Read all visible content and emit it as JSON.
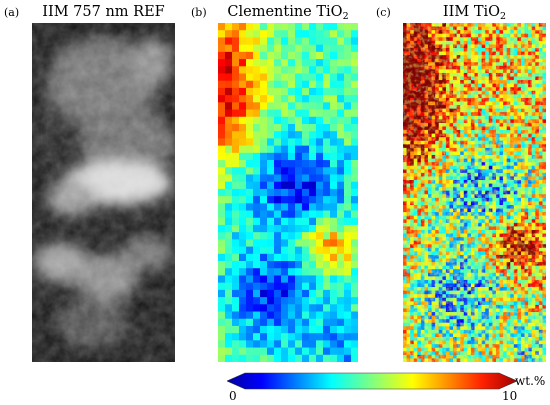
{
  "panels": [
    {
      "label": "(a)",
      "title_main": "IIM 757 nm REF",
      "title_sub": "",
      "kind": "reflectance"
    },
    {
      "label": "(b)",
      "title_main": "Clementine TiO",
      "title_sub": "2",
      "kind": "coarse"
    },
    {
      "label": "(c)",
      "title_main": "IIM TiO",
      "title_sub": "2",
      "kind": "fine"
    }
  ],
  "colorbar": {
    "min_label": "0",
    "max_label": "10",
    "unit": "wt.%",
    "colormap": "jet",
    "min": 0,
    "max": 10
  }
}
